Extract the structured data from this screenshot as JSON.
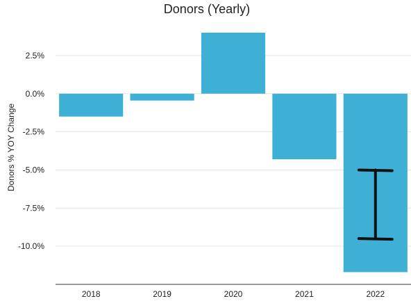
{
  "chart_data": {
    "type": "bar",
    "title": "Donors (Yearly)",
    "ylabel": "Donors % YOY Change",
    "xlabel": "",
    "categories": [
      "2018",
      "2019",
      "2020",
      "2021",
      "2022"
    ],
    "values": [
      -1.5,
      -0.45,
      4.0,
      -4.3,
      -11.7
    ],
    "ylim": [
      -12.5,
      4.0
    ],
    "yticks": [
      2.5,
      0.0,
      -2.5,
      -5.0,
      -7.5,
      -10.0
    ],
    "ytick_labels": [
      "2.5%",
      "0.0%",
      "-2.5%",
      "-5.0%",
      "-7.5%",
      "-10.0%"
    ],
    "grid": true,
    "legend": "none",
    "bar_color": "#3eb0d6",
    "annotation": {
      "type": "error-bar",
      "category": "2022",
      "low": -9.5,
      "high": -5.0
    }
  }
}
